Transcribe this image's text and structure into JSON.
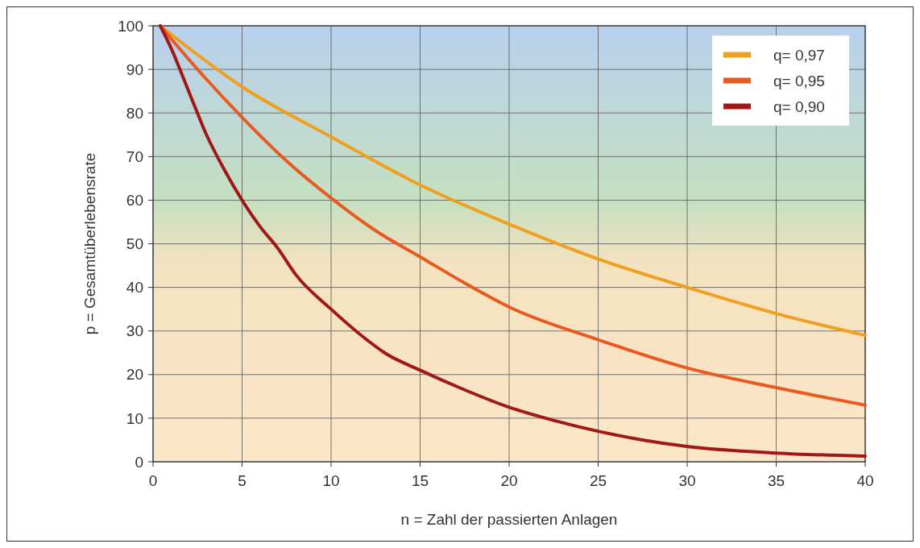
{
  "chart_data": {
    "type": "line",
    "xlabel": "n = Zahl der passierten Anlagen",
    "ylabel": "p = Gesamtüberlebensrate",
    "xlim": [
      0,
      40
    ],
    "xticks": [
      0,
      5,
      10,
      15,
      20,
      25,
      30,
      35,
      40
    ],
    "ylim": [
      0,
      100
    ],
    "yticks": [
      0,
      10,
      20,
      30,
      40,
      50,
      60,
      70,
      80,
      90,
      100
    ],
    "grid": true,
    "legend": "top right",
    "line_style": "solid",
    "marker": "none",
    "series": [
      {
        "name": "q= 0,97",
        "color": "#f0a020",
        "x": [
          0.4,
          5,
          10,
          15,
          20,
          25,
          30,
          35,
          40
        ],
        "values": [
          100,
          86,
          74.5,
          63.5,
          54.5,
          46.5,
          40,
          34,
          29
        ]
      },
      {
        "name": "q= 0,95",
        "color": "#e85a20",
        "x": [
          0.4,
          2.5,
          5,
          7.5,
          10,
          12.5,
          15,
          17.5,
          20,
          25,
          30,
          35,
          40
        ],
        "values": [
          100,
          90,
          79,
          69,
          60.5,
          53,
          47,
          41,
          35.5,
          28,
          21.5,
          17,
          13
        ]
      },
      {
        "name": "q= 0,90",
        "color": "#a01818",
        "x": [
          0.4,
          1,
          2,
          3,
          4,
          5,
          6,
          7,
          8,
          10,
          12,
          13,
          15,
          17.5,
          20,
          22.5,
          25,
          27.5,
          30,
          35,
          40
        ],
        "values": [
          100,
          95,
          85,
          75,
          67,
          60,
          54,
          49,
          43,
          35,
          28,
          25,
          21,
          16.5,
          12.5,
          9.5,
          7,
          5,
          3.5,
          2,
          1.3
        ]
      }
    ]
  }
}
